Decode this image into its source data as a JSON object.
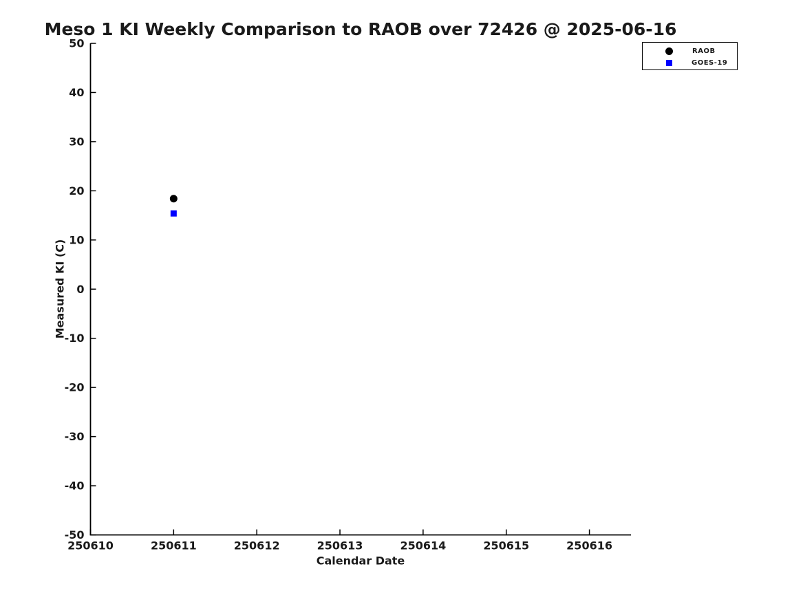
{
  "page": {
    "background_color": "#ffffff"
  },
  "chart_data": {
    "type": "scatter",
    "title": "Meso 1 KI Weekly Comparison to RAOB over 72426 @ 2025-06-16",
    "xlabel": "Calendar Date",
    "ylabel": "Measured KI (C)",
    "x_ticks": [
      "250610",
      "250611",
      "250612",
      "250613",
      "250614",
      "250615",
      "250616"
    ],
    "x_range": [
      250610,
      250616.5
    ],
    "y_ticks": [
      50,
      40,
      30,
      20,
      10,
      0,
      -10,
      -20,
      -30,
      -40,
      -50
    ],
    "ylim": [
      -50,
      50
    ],
    "grid": false,
    "axis_color": "#000000",
    "text_color": "#1a1a1a",
    "legend": {
      "position": "upper-right-outside-plot",
      "entries": [
        {
          "label": "RAOB",
          "marker": "circle",
          "color": "#000000"
        },
        {
          "label": "GOES-19",
          "marker": "square",
          "color": "#0000ff"
        }
      ]
    },
    "series": [
      {
        "name": "RAOB",
        "marker": "circle",
        "color": "#000000",
        "points": [
          {
            "x": 250611,
            "y": 18.4
          }
        ]
      },
      {
        "name": "GOES-19",
        "marker": "square",
        "color": "#0000ff",
        "points": [
          {
            "x": 250611,
            "y": 15.4
          }
        ]
      }
    ]
  }
}
